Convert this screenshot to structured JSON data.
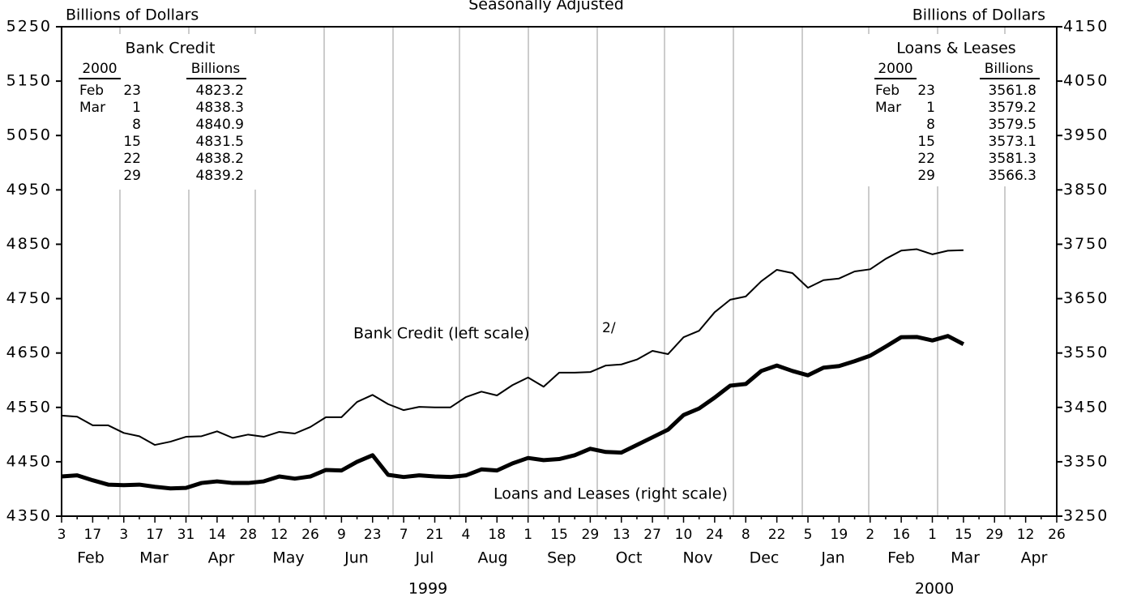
{
  "chart_data": {
    "type": "line",
    "title": "Seasonally Adjusted",
    "y_label": "Billions of Dollars",
    "y2_label": "Billions of Dollars",
    "categories": [
      "3",
      null,
      "17",
      null,
      "3",
      null,
      "17",
      null,
      "31",
      null,
      "14",
      null,
      "28",
      null,
      "12",
      null,
      "26",
      null,
      "9",
      null,
      "23",
      null,
      "7",
      null,
      "21",
      null,
      "4",
      null,
      "18",
      null,
      "1",
      null,
      "15",
      null,
      "29",
      null,
      "13",
      null,
      "27",
      null,
      "10",
      null,
      "24",
      null,
      "8",
      null,
      "22",
      null,
      "5",
      null,
      "19",
      null,
      "2",
      null,
      "16",
      null,
      "1",
      null,
      "15",
      null,
      "29",
      null,
      "12",
      null,
      "26"
    ],
    "months": [
      "Feb",
      "Mar",
      "Apr",
      "May",
      "Jun",
      "Jul",
      "Aug",
      "Sep",
      "Oct",
      "Nov",
      "Dec",
      "Jan",
      "Feb",
      "Mar",
      "Apr"
    ],
    "years": [
      "1999",
      "2000"
    ],
    "series": [
      {
        "name": "Bank Credit",
        "color": "#000000",
        "width": 2,
        "values": [
          4535,
          4533,
          4517,
          4517,
          4503,
          4497,
          4481,
          4487,
          4496,
          4497,
          4506,
          4494,
          4500,
          4496,
          4505,
          4502,
          4514,
          4532,
          4532,
          4560,
          4573,
          4556,
          4545,
          4551,
          4550,
          4550,
          4569,
          4579,
          4572,
          4591,
          4605,
          4588,
          4614,
          4614,
          4615,
          4627,
          4629,
          4638,
          4654,
          4648,
          4679,
          4691,
          4725,
          4748,
          4754,
          4782,
          4803,
          4797,
          4770,
          4784,
          4787,
          4800,
          4804,
          4823.2,
          4838.3,
          4840.9,
          4831.5,
          4838.2,
          4839.2,
          null,
          null,
          null,
          null,
          null,
          null
        ]
      },
      {
        "name": "Loans & Leases",
        "color": "#000000",
        "width": 5,
        "axis": "y2",
        "values": [
          3323,
          3325,
          3316,
          3308,
          3307,
          3308,
          3304,
          3301,
          3302,
          3311,
          3314,
          3311,
          3311,
          3314,
          3323,
          3319,
          3323,
          3335,
          3334,
          3350,
          3362,
          3326,
          3322,
          3325,
          3323,
          3322,
          3325,
          3336,
          3334,
          3347,
          3357,
          3353,
          3355,
          3362,
          3374,
          3368,
          3367,
          3381,
          3395,
          3409,
          3436,
          3448,
          3468,
          3490,
          3493,
          3517,
          3527,
          3517,
          3509,
          3523,
          3526,
          3535,
          3545,
          3561.8,
          3579.2,
          3579.5,
          3573.1,
          3581.3,
          3566.3,
          null,
          null,
          null,
          null,
          null,
          null
        ]
      }
    ],
    "ylim": [
      4350,
      5250
    ],
    "yticks": [
      4350,
      4450,
      4550,
      4650,
      4750,
      4850,
      4950,
      5050,
      5150,
      5250
    ],
    "y2lim": [
      3250,
      4150
    ],
    "y2ticks": [
      3250,
      3350,
      3450,
      3550,
      3650,
      3750,
      3850,
      3950,
      4050,
      4150
    ],
    "annotations": [
      "Bank Credit (left scale)",
      "2/",
      "Loans and Leases (right scale)"
    ],
    "tables": [
      {
        "year": "2000",
        "unit": "Billions",
        "rows": [
          [
            "Feb",
            "23",
            "4823.2"
          ],
          [
            "Mar",
            "1",
            "4838.3"
          ],
          [
            null,
            "8",
            "4840.9"
          ],
          [
            null,
            "15",
            "4831.5"
          ],
          [
            null,
            "22",
            "4838.2"
          ],
          [
            null,
            "29",
            "4839.2"
          ]
        ]
      },
      {
        "year": "2000",
        "unit": "Billions",
        "rows": [
          [
            "Feb",
            "23",
            "3561.8"
          ],
          [
            "Mar",
            "1",
            "3579.2"
          ],
          [
            null,
            "8",
            "3579.5"
          ],
          [
            null,
            "15",
            "3573.1"
          ],
          [
            null,
            "22",
            "3581.3"
          ],
          [
            null,
            "29",
            "3566.3"
          ]
        ]
      }
    ]
  }
}
